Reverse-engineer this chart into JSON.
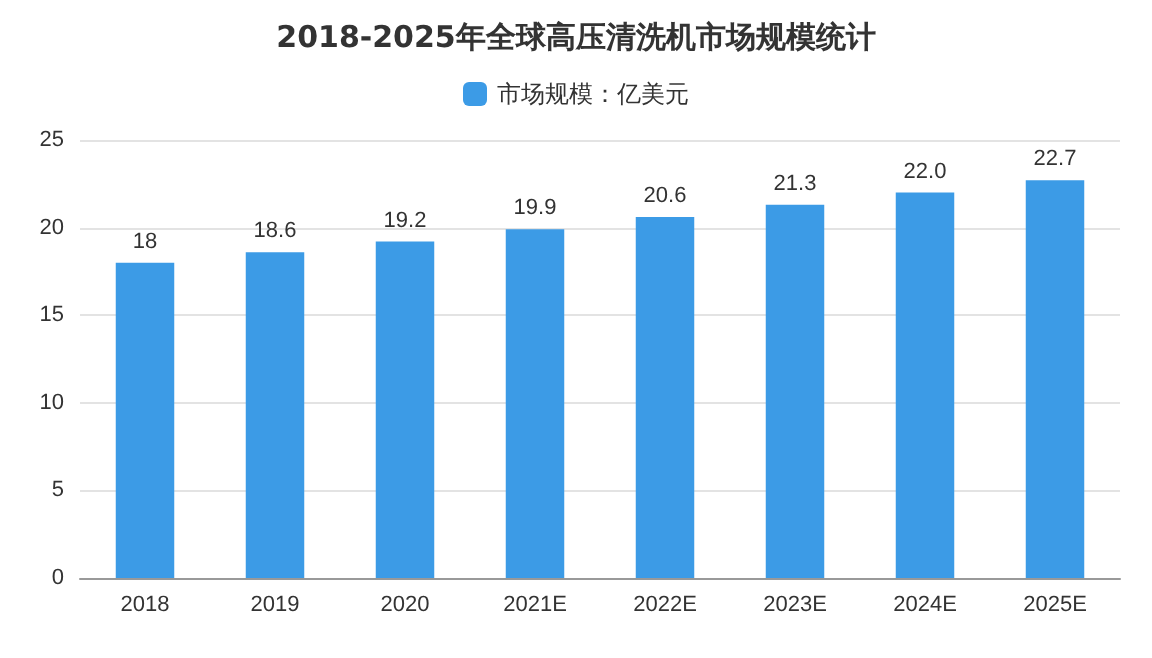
{
  "chart_data": {
    "type": "bar",
    "title": "2018-2025年全球高压清洗机市场规模统计",
    "categories": [
      "2018",
      "2019",
      "2020",
      "2021E",
      "2022E",
      "2023E",
      "2024E",
      "2025E"
    ],
    "series": [
      {
        "name": "市场规模：亿美元",
        "color": "#3c9be6",
        "values": [
          18,
          18.6,
          19.2,
          19.9,
          20.6,
          21.3,
          22.0,
          22.7
        ],
        "value_labels": [
          "18",
          "18.6",
          "19.2",
          "19.9",
          "20.6",
          "21.3",
          "22.0",
          "22.7"
        ]
      }
    ],
    "ylim": [
      0,
      25
    ],
    "yticks": [
      0,
      5,
      10,
      15,
      20,
      25
    ],
    "grid": "y",
    "legend": "top"
  }
}
